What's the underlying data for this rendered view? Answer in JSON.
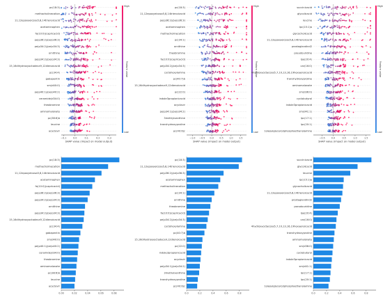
{
  "colors": {
    "low": "#1e88e5",
    "high": "#ff0052",
    "bar": "#1e88e5"
  },
  "colorbar": {
    "high": "High",
    "low": "Low",
    "label": "Feature value"
  },
  "chart_data": [
    {
      "type": "scatter",
      "xlabel": "SHAP value (impact on model output)",
      "xlim": [
        -0.12,
        0.36
      ],
      "xticks": [
        -0.1,
        0.0,
        0.1,
        0.2,
        0.3
      ],
      "tick_labels": [
        "−0.1",
        "0.0",
        "0.1",
        "0.2",
        "0.3"
      ],
      "features": [
        "pc(18:3)",
        "methacholinecation",
        "11,12epoxyeicosa5,8,14trienoicacid",
        "acetaminophen",
        "fa(10:0)(capricacid)",
        "pe(p36:2)/pe(o36:3)",
        "pe(p34:2)/pe(o34:3)",
        "ornithine",
        "pe(p34:2)/pe(o34:3)",
        "15,16dihydroxyoctadeca9,12dienoicacid",
        "pc(34:4)",
        "gabapentin",
        "sm(d40:0)",
        "pe(p40:1)/pe(o40:2)",
        "ceramide(d34:0)",
        "theobromine",
        "aminomalonate",
        "pc(38:6)b",
        "leucine",
        "acyclovir"
      ],
      "spread": [
        0.95,
        0.9,
        0.85,
        0.8,
        0.75,
        0.7,
        0.68,
        0.62,
        0.6,
        0.58,
        0.55,
        0.5,
        0.45,
        0.42,
        0.4,
        0.38,
        0.35,
        0.33,
        0.3,
        0.28
      ]
    },
    {
      "type": "scatter",
      "xlabel": "SHAP value (impact on model output)",
      "xlim": [
        -1.3,
        1.8
      ],
      "xticks": [
        -1.0,
        -0.5,
        0.0,
        0.5,
        1.0,
        1.5
      ],
      "tick_labels": [
        "−1.0",
        "−0.5",
        "0.0",
        "0.5",
        "1.0",
        "1.5"
      ],
      "features": [
        "pc(18:3)",
        "11,12epoxyeicosa5,8,14trienoicacid",
        "pe(p36:2)/pe(o36:3)",
        "acetaminophen",
        "methacholinecation",
        "pc(34:1)",
        "ornithine",
        "theobromine",
        "fa(10:0)(capricacid)",
        "pe(p34:2)/pe(o34:3)",
        "cyclohexylamine",
        "pc(40:7)b",
        "15,16dihydroxyoctadeca9,12dienoicacid",
        "pc(22:0)",
        "indole3propionicacid",
        "acyclovir",
        "pe(p34:1)/pe(o34:2)",
        "3methylxanthine",
        "transhydroxyproline",
        "pc(40:6)c"
      ],
      "spread": [
        0.95,
        0.9,
        0.85,
        0.8,
        0.75,
        0.7,
        0.68,
        0.62,
        0.6,
        0.58,
        0.55,
        0.5,
        0.45,
        0.42,
        0.4,
        0.38,
        0.35,
        0.33,
        0.3,
        0.28
      ]
    },
    {
      "type": "scatter",
      "xlabel": "SHAP value (impact on model output)",
      "xlim": [
        -0.9,
        1.7
      ],
      "xticks": [
        -0.5,
        0.0,
        0.5,
        1.0,
        1.5
      ],
      "tick_labels": [
        "−0.5",
        "0.0",
        "0.5",
        "1.0",
        "1.5"
      ],
      "features": [
        "succinicacid",
        "glycolicacid",
        "leucine",
        "lpc(15:1)a",
        "glycocholicacid",
        "11,12epoxyeicosa5,8,14trienoicacid",
        "prostaglandind2",
        "pseudouridine",
        "lpe(20:4)",
        "car(16:0)",
        "4hydroxyoctacosa5,7,10,13,16,19hexaenoicacid",
        "transhydroxyproline",
        "aminomalonate",
        "sm(d36:0)",
        "cyclobutyrol",
        "indole3propionicacid",
        "sm(d41:1)",
        "lpc(17:1)",
        "lpc(20:1)",
        "1oleoylglycero3phosphoethanolamine"
      ],
      "spread": [
        0.95,
        0.9,
        0.85,
        0.8,
        0.75,
        0.7,
        0.68,
        0.62,
        0.6,
        0.58,
        0.55,
        0.5,
        0.45,
        0.42,
        0.4,
        0.38,
        0.35,
        0.33,
        0.3,
        0.28
      ]
    },
    {
      "type": "bar",
      "orientation": "horizontal",
      "xlim": [
        0,
        0.095
      ],
      "xticks": [
        0.0,
        0.02,
        0.04,
        0.06,
        0.08
      ],
      "tick_labels": [
        "0.00",
        "0.02",
        "0.04",
        "0.06",
        "0.08"
      ],
      "categories": [
        "pc(18:3)",
        "methacholinecation",
        "11,12epoxyeicosa5,8,14trienoicacid",
        "acetaminophen",
        "fa(10:0)(capricacid)",
        "pe(p36:2)/pe(o36:3)",
        "pe(p34:2)/pe(o34:3)",
        "ornithine",
        "pe(p34:2)/pe(o34:3)",
        "15,16dihydroxyoctadeca9,12dienoicacid",
        "pc(34:4)",
        "gabapentin",
        "sm(d40:0)",
        "pe(p40:1)/pe(o40:2)",
        "ceramide(d34:0)",
        "theobromine",
        "aminomalonate",
        "pc(38:6)b",
        "leucine",
        "acyclovir"
      ],
      "values": [
        0.088,
        0.071,
        0.061,
        0.051,
        0.047,
        0.043,
        0.04,
        0.036,
        0.035,
        0.034,
        0.032,
        0.029,
        0.027,
        0.026,
        0.025,
        0.024,
        0.023,
        0.022,
        0.021,
        0.02
      ]
    },
    {
      "type": "bar",
      "orientation": "horizontal",
      "xlim": [
        0,
        0.95
      ],
      "xticks": [
        0.0,
        0.2,
        0.4,
        0.6,
        0.8
      ],
      "tick_labels": [
        "0.0",
        "0.2",
        "0.4",
        "0.6",
        "0.8"
      ],
      "categories": [
        "pc(18:3)",
        "11,12epoxyeicosa5,8,14trienoicacid",
        "pe(p36:2)/pe(o36:3)",
        "acetaminophen",
        "methacholinecation",
        "pc(34:1)",
        "ornithine",
        "theobromine",
        "fa(10:0)(capricacid)",
        "pe(p34:2)/pe(o34:3)",
        "cyclohexylamine",
        "pc(40:7)b",
        "15,16dihydroxyoctadeca9,12dienoicacid",
        "pc(22:0)",
        "indole3propionicacid",
        "acyclovir",
        "pe(p34:1)/pe(o34:2)",
        "3methylxanthine",
        "transhydroxyproline",
        "pc(40:6)c"
      ],
      "values": [
        0.84,
        0.79,
        0.56,
        0.51,
        0.48,
        0.42,
        0.38,
        0.36,
        0.34,
        0.32,
        0.3,
        0.27,
        0.24,
        0.23,
        0.22,
        0.21,
        0.2,
        0.19,
        0.17,
        0.16
      ]
    },
    {
      "type": "bar",
      "orientation": "horizontal",
      "xlim": [
        0,
        0.95
      ],
      "xticks": [
        0.0,
        0.2,
        0.4,
        0.6,
        0.8
      ],
      "tick_labels": [
        "0.0",
        "0.2",
        "0.4",
        "0.6",
        "0.8"
      ],
      "categories": [
        "succinicacid",
        "glycolicacid",
        "leucine",
        "lpc(15:1)a",
        "glycocholicacid",
        "11,12epoxyeicosa5,8,14trienoicacid",
        "prostaglandind2",
        "pseudouridine",
        "lpe(20:4)",
        "car(16:0)",
        "4hydroxyoctacosa5,7,10,13,16,19hexaenoicacid",
        "transhydroxyproline",
        "aminomalonate",
        "sm(d36:0)",
        "cyclobutyrol",
        "indole3propionicacid",
        "sm(d41:1)",
        "lpc(17:1)",
        "lpc(20:1)",
        "1oleoylglycero3phosphoethanolamine"
      ],
      "values": [
        0.88,
        0.67,
        0.56,
        0.46,
        0.45,
        0.44,
        0.42,
        0.4,
        0.37,
        0.35,
        0.34,
        0.32,
        0.31,
        0.3,
        0.29,
        0.28,
        0.27,
        0.26,
        0.25,
        0.23
      ]
    }
  ]
}
